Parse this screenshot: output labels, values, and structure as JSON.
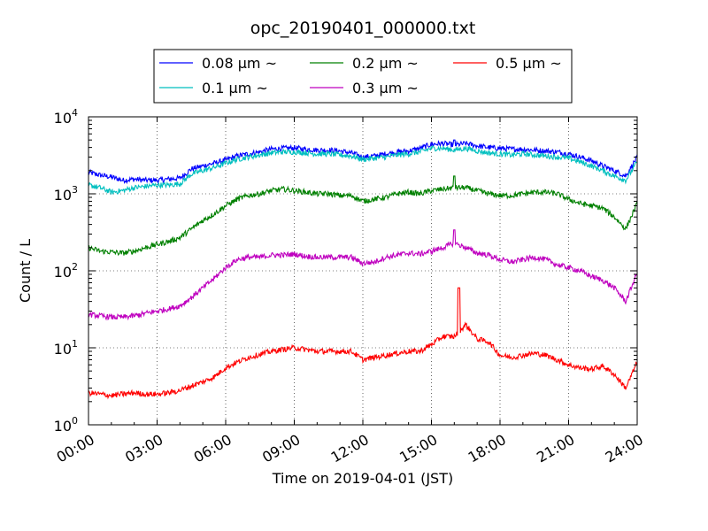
{
  "chart_data": {
    "type": "line",
    "title": "opc_20190401_000000.txt",
    "xlabel": "Time on 2019-04-01 (JST)",
    "ylabel": "Count / L",
    "yscale": "log",
    "ylim": [
      1,
      10000
    ],
    "xlim_hours": [
      0,
      24
    ],
    "grid": true,
    "legend_position": "top-center",
    "x_tick_labels": [
      "00:00",
      "03:00",
      "06:00",
      "09:00",
      "12:00",
      "15:00",
      "18:00",
      "21:00",
      "24:00"
    ],
    "y_tick_labels": [
      {
        "base": "10",
        "exp": "0"
      },
      {
        "base": "10",
        "exp": "1"
      },
      {
        "base": "10",
        "exp": "2"
      },
      {
        "base": "10",
        "exp": "3"
      },
      {
        "base": "10",
        "exp": "4"
      }
    ],
    "x_hours": [
      0,
      0.5,
      1,
      1.5,
      2,
      2.5,
      3,
      3.5,
      4,
      4.5,
      5,
      5.5,
      6,
      6.5,
      7,
      7.5,
      8,
      8.5,
      9,
      9.5,
      10,
      10.5,
      11,
      11.5,
      12,
      12.5,
      13,
      13.5,
      14,
      14.5,
      15,
      15.5,
      16,
      16.5,
      17,
      17.5,
      18,
      18.5,
      19,
      19.5,
      20,
      20.5,
      21,
      21.5,
      22,
      22.5,
      23,
      23.5,
      24
    ],
    "series": [
      {
        "name": "0.08 μm ~",
        "color": "#0000ff",
        "values": [
          1900,
          1750,
          1650,
          1500,
          1550,
          1500,
          1500,
          1550,
          1600,
          2100,
          2300,
          2500,
          2750,
          3100,
          3300,
          3500,
          3800,
          3900,
          3950,
          3800,
          3700,
          3700,
          3600,
          3400,
          3000,
          3100,
          3300,
          3500,
          3600,
          3900,
          4400,
          4500,
          4300,
          4500,
          4200,
          4000,
          3900,
          3800,
          3800,
          3700,
          3600,
          3500,
          3300,
          3000,
          2700,
          2300,
          2000,
          1700,
          3000
        ]
      },
      {
        "name": "0.1 μm ~",
        "color": "#00bfbf",
        "values": [
          1300,
          1200,
          1050,
          1100,
          1200,
          1250,
          1300,
          1300,
          1350,
          1800,
          2000,
          2200,
          2500,
          2800,
          3000,
          3200,
          3400,
          3500,
          3500,
          3400,
          3300,
          3300,
          3200,
          3100,
          2800,
          2900,
          3000,
          3200,
          3300,
          3500,
          3900,
          3900,
          3700,
          3900,
          3600,
          3400,
          3300,
          3200,
          3300,
          3200,
          3100,
          3000,
          2900,
          2600,
          2300,
          2000,
          1700,
          1500,
          2600
        ]
      },
      {
        "name": "0.2 μm ~",
        "color": "#008000",
        "values": [
          200,
          180,
          175,
          170,
          180,
          200,
          220,
          240,
          270,
          350,
          450,
          550,
          700,
          850,
          950,
          1000,
          1100,
          1150,
          1100,
          1050,
          1000,
          1000,
          950,
          950,
          800,
          850,
          900,
          1000,
          1050,
          1000,
          1100,
          1150,
          1200,
          1200,
          1100,
          1000,
          950,
          950,
          1000,
          1050,
          1050,
          1000,
          850,
          750,
          700,
          650,
          500,
          350,
          750
        ]
      },
      {
        "name": "0.3 μm ~",
        "color": "#bf00bf",
        "values": [
          27,
          26,
          25,
          25,
          26,
          28,
          30,
          32,
          35,
          45,
          60,
          80,
          110,
          140,
          150,
          150,
          160,
          160,
          165,
          155,
          150,
          150,
          150,
          150,
          125,
          130,
          150,
          160,
          170,
          165,
          180,
          200,
          230,
          200,
          170,
          160,
          140,
          130,
          140,
          150,
          140,
          120,
          110,
          100,
          85,
          75,
          60,
          40,
          95
        ]
      },
      {
        "name": "0.5 μm ~",
        "color": "#ff0000",
        "values": [
          2.6,
          2.5,
          2.4,
          2.5,
          2.6,
          2.5,
          2.5,
          2.6,
          2.8,
          3.2,
          3.6,
          4.2,
          5.5,
          6.5,
          7.5,
          8.2,
          9,
          9.5,
          10,
          9.5,
          9,
          9,
          9,
          9,
          7,
          7.5,
          8,
          8.5,
          9,
          9,
          11,
          14,
          14,
          20,
          13,
          12,
          8,
          7.5,
          8,
          8.5,
          8,
          7,
          6,
          5.5,
          5.3,
          5.8,
          4.5,
          3,
          6.5
        ]
      }
    ],
    "spikes": [
      {
        "series": "0.5 μm ~",
        "hour": 16.2,
        "value": 60
      },
      {
        "series": "0.3 μm ~",
        "hour": 16.0,
        "value": 340
      },
      {
        "series": "0.2 μm ~",
        "hour": 16.0,
        "value": 1700
      },
      {
        "series": "0.08 μm ~",
        "hour": 16.0,
        "value": 5000
      }
    ]
  }
}
